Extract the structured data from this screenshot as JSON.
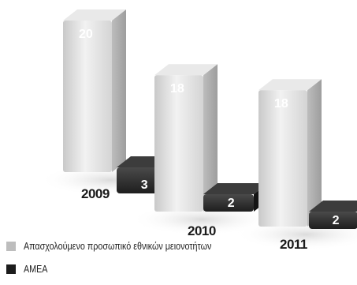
{
  "chart_data": {
    "type": "bar",
    "categories": [
      "2009",
      "2010",
      "2011"
    ],
    "series": [
      {
        "name": "Απασχολούμενο προσωπικό εθνικών μειονοτήτων",
        "values": [
          20,
          18,
          18
        ],
        "color": "#d8d8d8"
      },
      {
        "name": "ΑΜΕΑ",
        "values": [
          3,
          2,
          2
        ],
        "color": "#2f2f2f"
      }
    ],
    "title": "",
    "xlabel": "",
    "ylabel": "",
    "grid": false,
    "legend": "bottom-left"
  }
}
